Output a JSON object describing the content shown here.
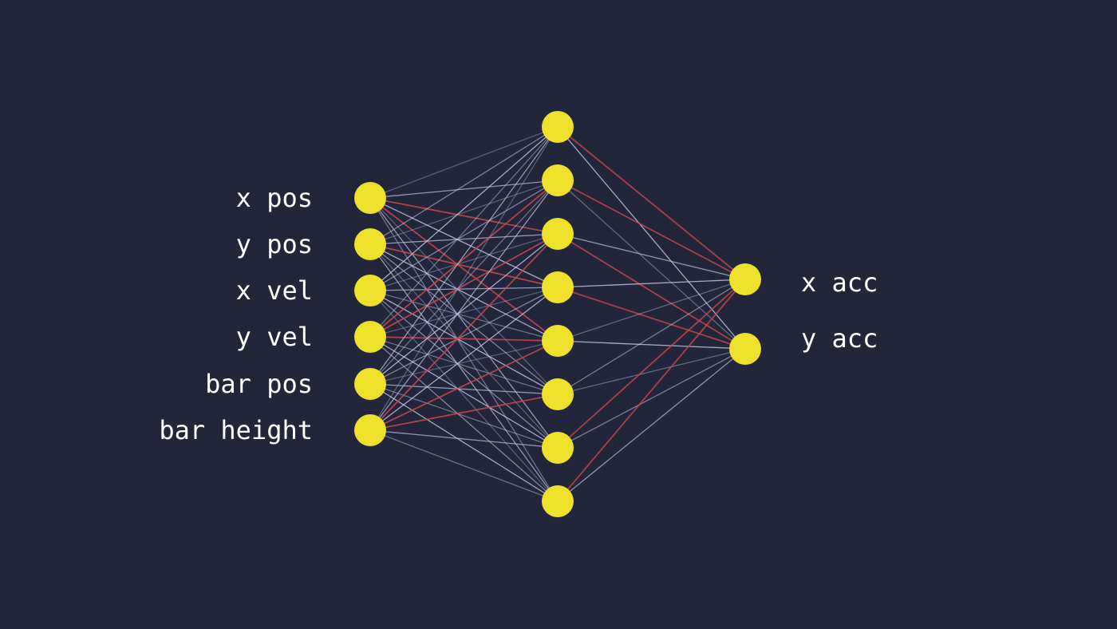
{
  "colors": {
    "background": "#23263a",
    "node": "#ede12b",
    "positive_edge": "#c9c9ec",
    "negative_edge": "#c44a4c"
  },
  "network": {
    "input_labels": [
      "x pos",
      "y pos",
      "x vel",
      "y vel",
      "bar pos",
      "bar height"
    ],
    "hidden_count": 8,
    "output_labels": [
      "x acc",
      "y acc"
    ]
  }
}
